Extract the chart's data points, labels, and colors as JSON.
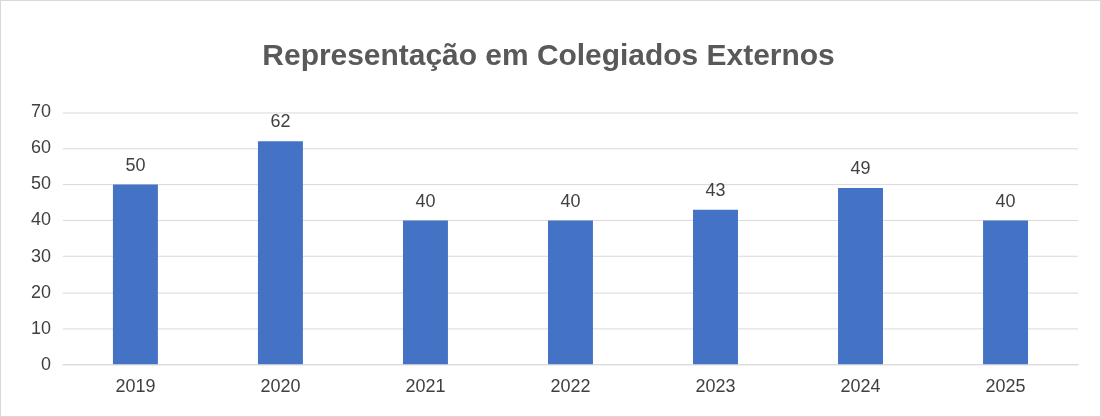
{
  "chart_data": {
    "type": "bar",
    "title": "Representação em Colegiados Externos",
    "categories": [
      "2019",
      "2020",
      "2021",
      "2022",
      "2023",
      "2024",
      "2025"
    ],
    "values": [
      50,
      62,
      40,
      40,
      43,
      49,
      40
    ],
    "color": "#4472c4",
    "ylim": [
      0,
      70
    ],
    "yticks": [
      0,
      10,
      20,
      30,
      40,
      50,
      60,
      70
    ],
    "grid": "y",
    "data_labels": true,
    "legend": false
  }
}
